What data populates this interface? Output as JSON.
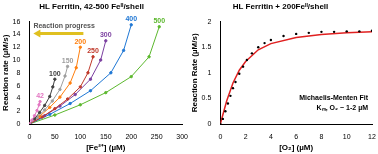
{
  "chart_data": [
    {
      "type": "scatter",
      "title": "HL Ferritin, 42-500 Feᴵᴵ/shell",
      "x_label": "[Fe²⁺] (µM)",
      "y_label": "Reaction rate (µM/s)",
      "annotations": [
        "Reaction progress"
      ],
      "xlim": [
        0,
        300
      ],
      "xticks": [
        0,
        50,
        100,
        150,
        200,
        250,
        300
      ],
      "ylim": [
        0,
        16
      ],
      "yticks": [
        0,
        2,
        4,
        6,
        8,
        10,
        12,
        14,
        16
      ],
      "grid": false,
      "series": [
        {
          "name": "42",
          "color": "#e377c2",
          "marker": "circle",
          "line_style": "solid",
          "x": [
            0,
            5,
            10,
            15,
            19,
            21
          ],
          "values": [
            0,
            0.6,
            1.3,
            2.1,
            3,
            3.5
          ]
        },
        {
          "name": "100",
          "color": "#404040",
          "marker": "circle",
          "line_style": "solid",
          "x": [
            0,
            10,
            20,
            30,
            40,
            46,
            50
          ],
          "values": [
            0,
            0.8,
            1.8,
            2.9,
            4.3,
            5.8,
            7
          ]
        },
        {
          "name": "150",
          "color": "#9e9e9e",
          "marker": "circle",
          "line_style": "solid",
          "x": [
            0,
            15,
            30,
            45,
            60,
            70,
            75
          ],
          "values": [
            0,
            1,
            2.2,
            3.6,
            5.4,
            7.5,
            9
          ]
        },
        {
          "name": "200",
          "color": "#ff7f0e",
          "marker": "circle",
          "line_style": "solid",
          "x": [
            0,
            20,
            40,
            60,
            80,
            92,
            100
          ],
          "values": [
            0,
            1.2,
            2.6,
            4.2,
            6.4,
            8.8,
            12
          ]
        },
        {
          "name": "250",
          "color": "#c0392b",
          "marker": "circle",
          "line_style": "solid",
          "x": [
            0,
            25,
            50,
            75,
            100,
            115,
            125
          ],
          "values": [
            0,
            1.1,
            2.4,
            3.9,
            5.8,
            8,
            10.5
          ]
        },
        {
          "name": "300",
          "color": "#7b3fa0",
          "marker": "circle",
          "line_style": "solid",
          "x": [
            0,
            30,
            60,
            90,
            120,
            140,
            150
          ],
          "values": [
            0,
            1.3,
            2.8,
            4.6,
            7,
            10,
            13
          ]
        },
        {
          "name": "400",
          "color": "#1f77d4",
          "marker": "circle",
          "line_style": "solid",
          "x": [
            0,
            40,
            80,
            120,
            160,
            185,
            200
          ],
          "values": [
            0,
            1.5,
            3.2,
            5.2,
            8,
            11.5,
            15.5
          ]
        },
        {
          "name": "500",
          "color": "#5cb82e",
          "marker": "circle",
          "line_style": "solid",
          "x": [
            0,
            50,
            100,
            150,
            200,
            235,
            255
          ],
          "values": [
            0,
            1.4,
            3,
            4.9,
            7.4,
            10.5,
            15.2
          ]
        }
      ]
    },
    {
      "type": "scatter",
      "title": "HL Ferritin + 200Feᴵᴵ/shell",
      "x_label": "[O₂] (µM)",
      "y_label": "Reaction Rate (µM/s)",
      "annotations": [
        "Michaelis-Menten Fit",
        "Kₘ, O₂ ~ 1-2 µM"
      ],
      "xlim": [
        0,
        12
      ],
      "xticks": [
        0,
        2,
        4,
        6,
        8,
        10,
        12
      ],
      "ylim": [
        0,
        2
      ],
      "yticks": [
        0,
        0.5,
        1,
        1.5,
        2
      ],
      "grid": false,
      "series": [
        {
          "color": "#000000",
          "marker": "circle",
          "line_style": "none",
          "x": [
            0,
            0.2,
            0.4,
            0.6,
            0.8,
            1,
            1.2,
            1.5,
            1.8,
            2.1,
            2.5,
            3,
            3.5,
            4,
            5,
            6,
            7,
            8,
            9,
            10,
            11,
            12
          ],
          "values": [
            0,
            0.1,
            0.25,
            0.4,
            0.55,
            0.7,
            0.82,
            0.98,
            1.12,
            1.25,
            1.38,
            1.5,
            1.58,
            1.64,
            1.72,
            1.76,
            1.78,
            1.8,
            1.8,
            1.81,
            1.81,
            1.82
          ]
        },
        {
          "color": "#e02020",
          "marker": "none",
          "line_style": "solid",
          "x": [
            0,
            0.5,
            1,
            1.5,
            2,
            3,
            4,
            6,
            8,
            10,
            12
          ],
          "values": [
            0,
            0.45,
            0.8,
            1.05,
            1.22,
            1.45,
            1.57,
            1.69,
            1.75,
            1.78,
            1.8
          ]
        }
      ]
    }
  ]
}
